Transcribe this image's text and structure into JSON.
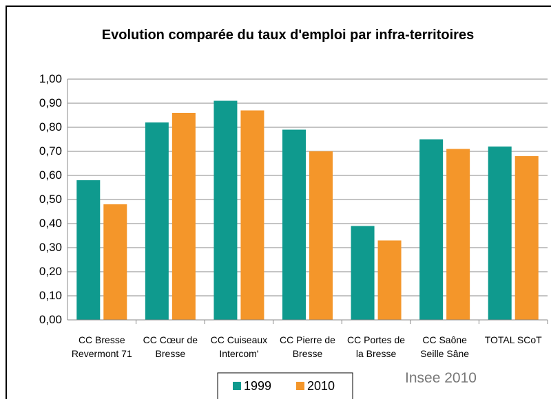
{
  "chart_data": {
    "type": "bar",
    "title": "Evolution comparée du taux d'emploi par infra-territoires",
    "categories": [
      "CC Bresse Revermont 71",
      "CC Cœur de Bresse",
      "CC Cuiseaux Intercom'",
      "CC Pierre de Bresse",
      "CC Portes de la Bresse",
      "CC Saône Seille Sâne",
      "TOTAL SCoT"
    ],
    "series": [
      {
        "name": "1999",
        "color": "#0f9a8e",
        "values": [
          0.58,
          0.82,
          0.91,
          0.79,
          0.39,
          0.75,
          0.72
        ]
      },
      {
        "name": "2010",
        "color": "#f4962a",
        "values": [
          0.48,
          0.86,
          0.87,
          0.7,
          0.33,
          0.71,
          0.68
        ]
      }
    ],
    "ylim": [
      0,
      1
    ],
    "yticks": [
      {
        "value": 0,
        "label": "0,00"
      },
      {
        "value": 0.1,
        "label": "0,10"
      },
      {
        "value": 0.2,
        "label": "0,20"
      },
      {
        "value": 0.3,
        "label": "0,30"
      },
      {
        "value": 0.4,
        "label": "0,40"
      },
      {
        "value": 0.5,
        "label": "0,50"
      },
      {
        "value": 0.6,
        "label": "0,60"
      },
      {
        "value": 0.7,
        "label": "0,70"
      },
      {
        "value": 0.8,
        "label": "0,80"
      },
      {
        "value": 0.9,
        "label": "0,90"
      },
      {
        "value": 1,
        "label": "1,00"
      }
    ],
    "grid": true,
    "annotations": [
      "Insee 2010"
    ]
  }
}
